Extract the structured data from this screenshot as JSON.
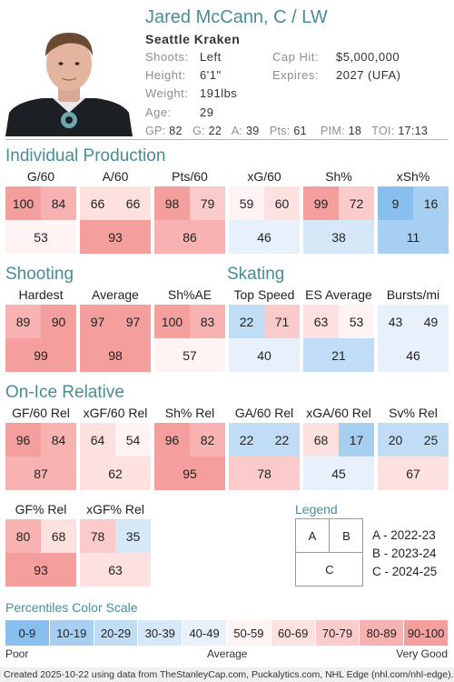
{
  "player": {
    "name": "Jared McCann, C / LW",
    "team": "Seattle Kraken",
    "shoots_label": "Shoots:",
    "shoots": "Left",
    "height_label": "Height:",
    "height": "6'1\"",
    "weight_label": "Weight:",
    "weight": "191lbs",
    "age_label": "Age:",
    "age": "29",
    "cap_label": "Cap Hit:",
    "cap": "$5,000,000",
    "expires_label": "Expires:",
    "expires": "2027 (UFA)"
  },
  "summary": {
    "gp_label": "GP:",
    "gp": "82",
    "g_label": "G:",
    "g": "22",
    "a_label": "A:",
    "a": "39",
    "pts_label": "Pts:",
    "pts": "61",
    "pim_label": "PIM:",
    "pim": "18",
    "toi_label": "TOI:",
    "toi": "17:13"
  },
  "sections": {
    "individual": "Individual Production",
    "shooting": "Shooting",
    "skating": "Skating",
    "onice": "On-Ice Relative"
  },
  "metrics": {
    "g60": {
      "title": "G/60",
      "a": 100,
      "b": 84,
      "c": 53
    },
    "a60": {
      "title": "A/60",
      "a": 66,
      "b": 66,
      "c": 93
    },
    "pts60": {
      "title": "Pts/60",
      "a": 98,
      "b": 79,
      "c": 86
    },
    "xg60": {
      "title": "xG/60",
      "a": 59,
      "b": 60,
      "c": 46
    },
    "sh": {
      "title": "Sh%",
      "a": 99,
      "b": 72,
      "c": 38
    },
    "xsh": {
      "title": "xSh%",
      "a": 9,
      "b": 16,
      "c": 11
    },
    "hardest": {
      "title": "Hardest",
      "a": 89,
      "b": 90,
      "c": 99
    },
    "average": {
      "title": "Average",
      "a": 97,
      "b": 97,
      "c": 98
    },
    "shae": {
      "title": "Sh%AE",
      "a": 100,
      "b": 83,
      "c": 57
    },
    "topspeed": {
      "title": "Top Speed",
      "a": 22,
      "b": 71,
      "c": 40
    },
    "esavg": {
      "title": "ES Average",
      "a": 63,
      "b": 53,
      "c": 21
    },
    "bursts": {
      "title": "Bursts/mi",
      "a": 43,
      "b": 49,
      "c": 46
    },
    "gf60": {
      "title": "GF/60 Rel",
      "a": 96,
      "b": 84,
      "c": 87
    },
    "xgf60": {
      "title": "xGF/60 Rel",
      "a": 64,
      "b": 54,
      "c": 62
    },
    "shrel": {
      "title": "Sh% Rel",
      "a": 96,
      "b": 82,
      "c": 95
    },
    "ga60": {
      "title": "GA/60 Rel",
      "a": 22,
      "b": 22,
      "c": 78
    },
    "xga60": {
      "title": "xGA/60 Rel",
      "a": 68,
      "b": 17,
      "c": 45
    },
    "svrel": {
      "title": "Sv% Rel",
      "a": 20,
      "b": 25,
      "c": 67
    },
    "gfpct": {
      "title": "GF% Rel",
      "a": 80,
      "b": 68,
      "c": 93
    },
    "xgfpct": {
      "title": "xGF% Rel",
      "a": 78,
      "b": 35,
      "c": 63
    }
  },
  "legend": {
    "title": "Legend",
    "a": "A",
    "b": "B",
    "c": "C",
    "a_text": "A - 2022-23",
    "b_text": "B - 2023-24",
    "c_text": "C - 2024-25"
  },
  "scale": {
    "title": "Percentiles Color Scale",
    "bins": [
      "0-9",
      "10-19",
      "20-29",
      "30-39",
      "40-49",
      "50-59",
      "60-69",
      "70-79",
      "80-89",
      "90-100"
    ],
    "colors": [
      "#88bfee",
      "#a6cff2",
      "#c1ddf5",
      "#d6e8f8",
      "#e8f1fb",
      "#fff3f3",
      "#fde0e0",
      "#fbcaca",
      "#f8b2b2",
      "#f59e9e"
    ],
    "poor": "Poor",
    "average": "Average",
    "very_good": "Very Good"
  },
  "footer": "Created 2025-10-22 using data from TheStanleyCap.com, Puckalytics.com, NHL Edge (nhl.com/nhl-edge)."
}
